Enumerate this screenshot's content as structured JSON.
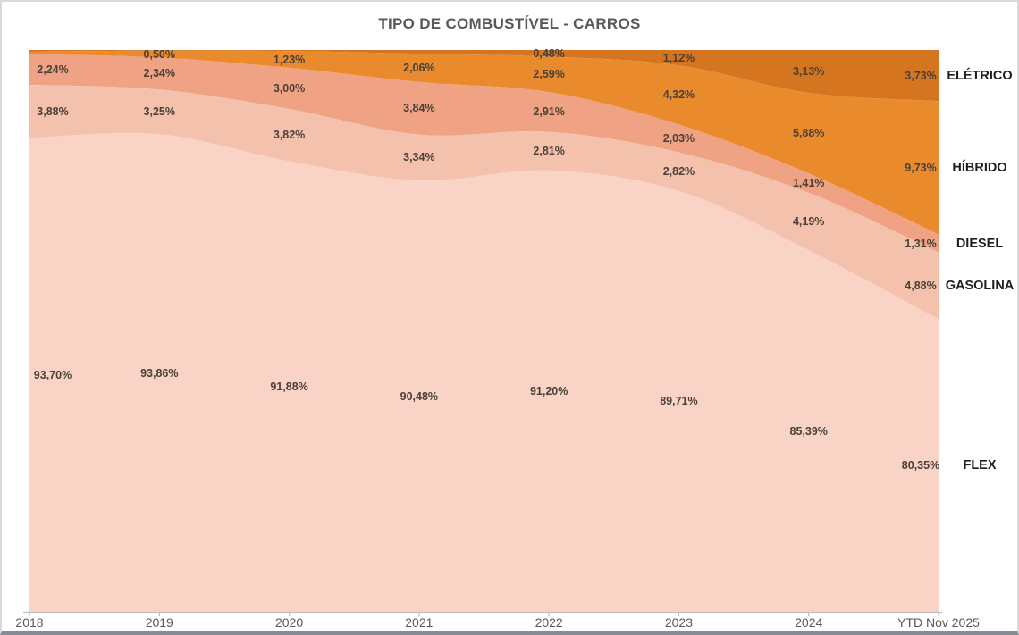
{
  "title": "TIPO DE COMBUSTÍVEL - CARROS",
  "chart_data": {
    "type": "area",
    "variant": "stacked-100-smoothed",
    "title": "TIPO DE COMBUSTÍVEL - CARROS",
    "categories": [
      "2018",
      "2019",
      "2020",
      "2021",
      "2022",
      "2023",
      "2024",
      "YTD Nov 2025"
    ],
    "series": [
      {
        "name": "ELÉTRICO",
        "color": "#D5751F",
        "values": [
          0.1,
          0.05,
          0.07,
          0.28,
          0.48,
          1.12,
          3.13,
          3.73
        ],
        "labels": [
          null,
          null,
          null,
          null,
          "0,48%",
          "1,12%",
          "3,13%",
          "3,73%"
        ]
      },
      {
        "name": "HÍBRIDO",
        "color": "#E98B2D",
        "values": [
          0.2,
          0.5,
          1.23,
          2.06,
          2.59,
          4.32,
          5.88,
          9.73
        ],
        "labels": [
          null,
          "0,50%",
          "1,23%",
          "2,06%",
          "2,59%",
          "4,32%",
          "5,88%",
          "9,73%"
        ]
      },
      {
        "name": "DIESEL",
        "color": "#EFA284",
        "values": [
          2.24,
          2.34,
          3.0,
          3.84,
          2.91,
          2.03,
          1.41,
          1.31
        ],
        "labels": [
          "2,24%",
          "2,34%",
          "3,00%",
          "3,84%",
          "2,91%",
          "2,03%",
          "1,41%",
          "1,31%"
        ]
      },
      {
        "name": "GASOLINA",
        "color": "#F4C2AC",
        "values": [
          3.88,
          3.25,
          3.82,
          3.34,
          2.81,
          2.82,
          4.19,
          4.88
        ],
        "labels": [
          "3,88%",
          "3,25%",
          "3,82%",
          "3,34%",
          "2,81%",
          "2,82%",
          "4,19%",
          "4,88%"
        ]
      },
      {
        "name": "FLEX",
        "color": "#F8D3C6",
        "values": [
          93.7,
          93.86,
          91.88,
          90.48,
          91.2,
          89.71,
          85.39,
          80.35
        ],
        "labels": [
          "93,70%",
          "93,86%",
          "91,88%",
          "90,48%",
          "91,20%",
          "89,71%",
          "85,39%",
          "80,35%"
        ]
      }
    ],
    "ylim": [
      59,
      100
    ],
    "grid": false,
    "legend_position": "right-inline-category-labels",
    "series_stack_order": "top-to-bottom"
  },
  "colors": {
    "value_label_text": "#4A4038",
    "category_label_text": "#1F1F1F",
    "axis_text": "#595959",
    "title_text": "#595959",
    "axis_line": "#BFBFBF",
    "outer_border": "#D9D9D9",
    "bottom_bar": "#848C97"
  }
}
